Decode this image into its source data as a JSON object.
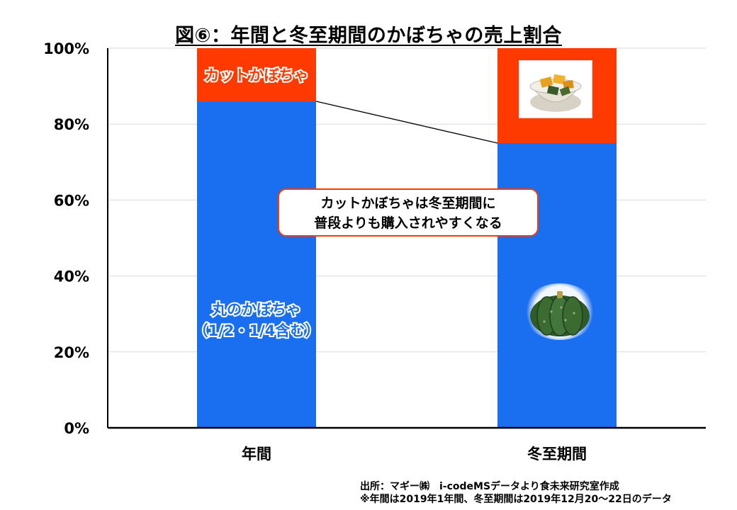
{
  "title": "図⑥：年間と冬至期間のかぼちゃの売上割合",
  "callout": {
    "line1": "カットかぼちゃは冬至期間に",
    "line2": "普段よりも購入されやすくなる"
  },
  "segment_labels": {
    "cut": "カットかぼちゃ",
    "whole_line1": "丸のかぼちゃ",
    "whole_line2": "（1/2・1/4含む）"
  },
  "source": {
    "line1": "出所：マギー㈱　i-codeMSデータより食未来研究室作成",
    "line2": "※年間は2019年1年間、冬至期間は2019年12月20～22日のデータ"
  },
  "icons": {
    "cut_pumpkin": "cut-pumpkin-photo-icon",
    "whole_pumpkin": "whole-pumpkin-icon"
  },
  "colors": {
    "whole": "#1a6ef0",
    "cut": "#ff3a00",
    "whole_label": "#1a6ef0",
    "cut_label": "#ff3a00"
  },
  "chart_data": {
    "type": "bar",
    "stacked": true,
    "categories": [
      "年間",
      "冬至期間"
    ],
    "series": [
      {
        "name": "丸のかぼちゃ（1/2・1/4含む）",
        "values": [
          86,
          75
        ]
      },
      {
        "name": "カットかぼちゃ",
        "values": [
          14,
          25
        ]
      }
    ],
    "ylim": [
      0,
      100
    ],
    "yticks": [
      "0%",
      "20%",
      "40%",
      "60%",
      "80%",
      "100%"
    ],
    "grid": true,
    "legend": "none",
    "connector_line": true
  }
}
